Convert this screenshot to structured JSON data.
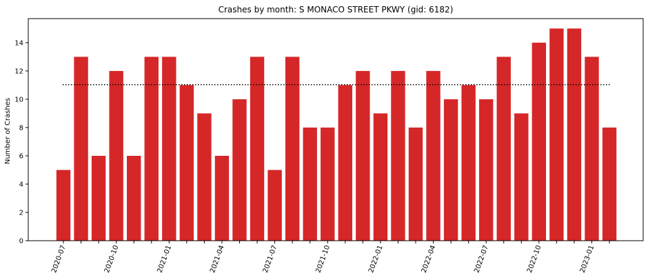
{
  "chart_data": {
    "type": "bar",
    "title": "Crashes by month: S MONACO STREET PKWY (gid: 6182)",
    "xlabel": "",
    "ylabel": "Number of Crashes",
    "categories": [
      "2020-07",
      "2020-08",
      "2020-09",
      "2020-10",
      "2020-11",
      "2020-12",
      "2021-01",
      "2021-02",
      "2021-03",
      "2021-04",
      "2021-05",
      "2021-06",
      "2021-07",
      "2021-08",
      "2021-09",
      "2021-10",
      "2021-11",
      "2021-12",
      "2022-01",
      "2022-02",
      "2022-03",
      "2022-04",
      "2022-05",
      "2022-06",
      "2022-07",
      "2022-08",
      "2022-09",
      "2022-10",
      "2022-11",
      "2022-12",
      "2023-01",
      "2023-02"
    ],
    "values": [
      5,
      13,
      6,
      12,
      6,
      13,
      13,
      11,
      9,
      6,
      10,
      13,
      5,
      13,
      8,
      8,
      11,
      12,
      9,
      12,
      8,
      12,
      10,
      11,
      10,
      13,
      9,
      14,
      15,
      15,
      13,
      8
    ],
    "x_tick_labels": [
      "2020-07",
      "2020-10",
      "2021-01",
      "2021-04",
      "2021-07",
      "2021-10",
      "2022-01",
      "2022-04",
      "2022-07",
      "2022-10",
      "2023-01"
    ],
    "ylim": [
      0,
      15.7
    ],
    "y_ticks": [
      0,
      2,
      4,
      6,
      8,
      10,
      12,
      14
    ],
    "reference_line": {
      "value": 11.03,
      "style": "dotted",
      "color": "#000000"
    },
    "bar_color": "#d62728",
    "grid": false,
    "legend": "none"
  }
}
